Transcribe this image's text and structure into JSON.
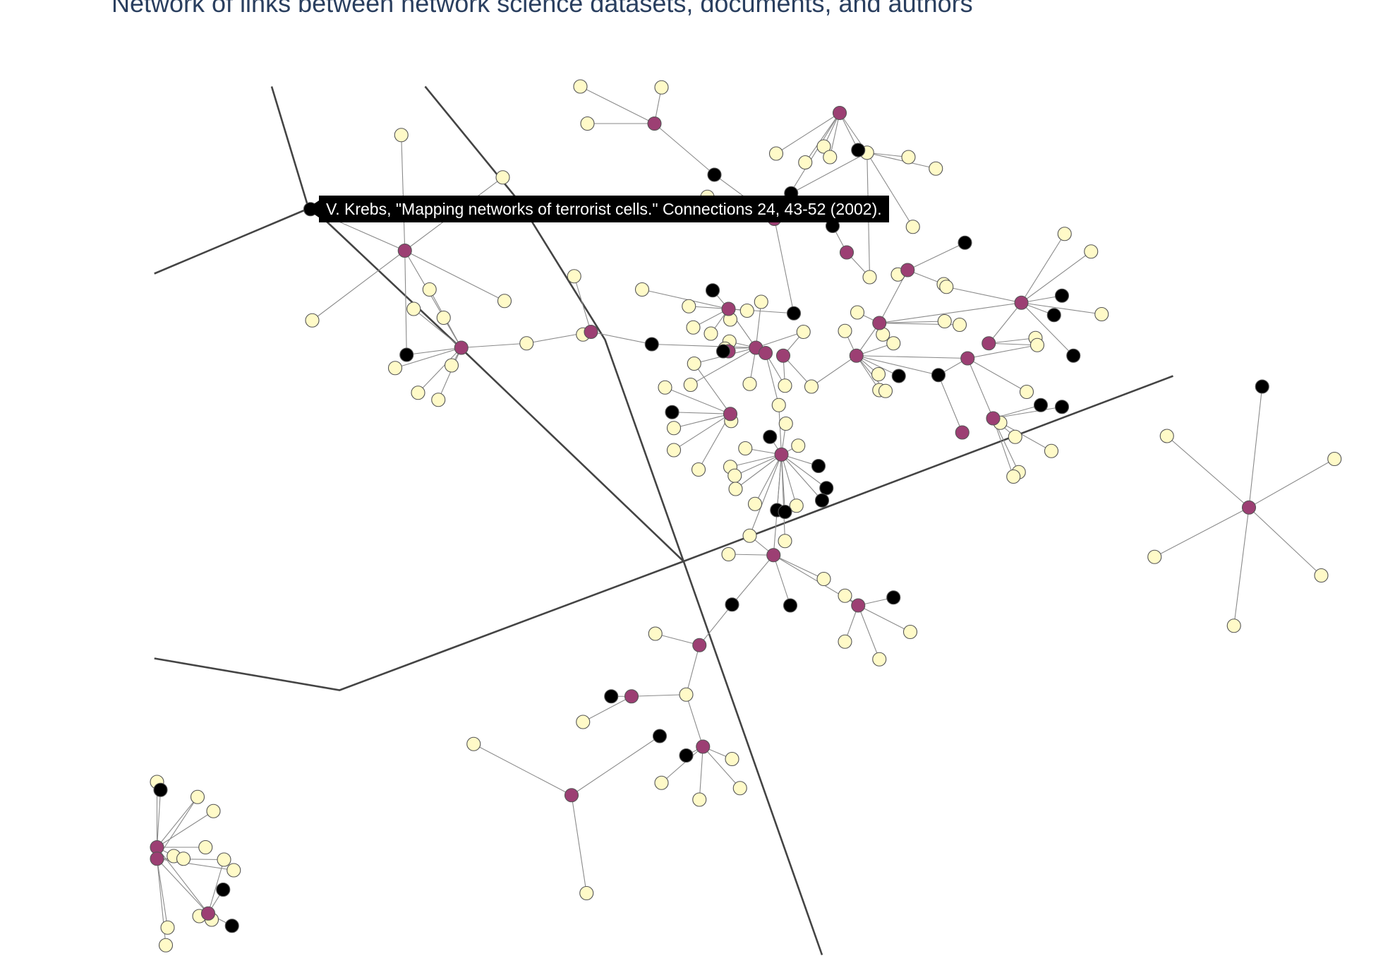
{
  "title": "Network of links between network science datasets, documents, and authors",
  "tooltip": {
    "text": "V. Krebs, \"Mapping networks of terrorist cells.\" Connections 24, 43-52 (2002)."
  },
  "colors": {
    "dataset": "#9c3f73",
    "document": "#fffac8",
    "author": "#000000",
    "edge": "#8a8a8a",
    "boundary": "#444444"
  },
  "legend": []
}
